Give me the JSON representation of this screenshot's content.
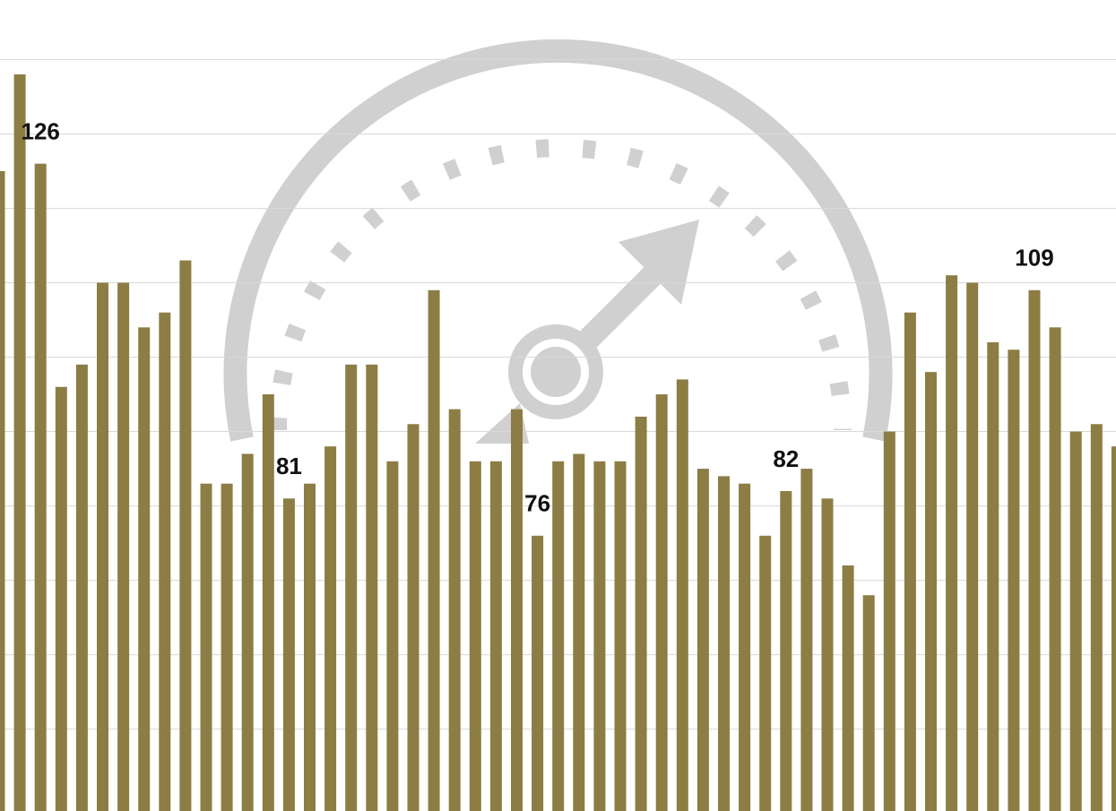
{
  "chart_data": {
    "type": "bar",
    "categories": [
      null,
      null,
      null,
      null,
      null,
      null,
      null,
      null,
      null,
      null,
      null,
      null,
      null,
      null,
      null,
      null,
      null,
      null,
      null,
      null,
      null,
      null,
      null,
      null,
      null,
      null,
      null,
      null,
      null,
      null,
      null,
      null,
      null,
      null,
      null,
      null,
      null,
      null,
      null,
      null,
      null,
      null,
      null,
      null,
      null,
      null,
      null,
      null,
      null,
      null,
      null,
      null,
      null,
      null,
      null
    ],
    "values": [
      125,
      138,
      126,
      96,
      99,
      110,
      110,
      104,
      106,
      113,
      83,
      83,
      87,
      95,
      81,
      83,
      88,
      99,
      99,
      86,
      91,
      109,
      93,
      86,
      86,
      93,
      76,
      86,
      87,
      86,
      86,
      92,
      95,
      97,
      85,
      84,
      83,
      76,
      82,
      85,
      81,
      72,
      68,
      90,
      106,
      98,
      111,
      110,
      102,
      101,
      109,
      104,
      90,
      91,
      88
    ],
    "value_labels": [
      null,
      null,
      "126",
      null,
      null,
      null,
      null,
      null,
      null,
      null,
      null,
      null,
      null,
      null,
      "81",
      null,
      null,
      null,
      null,
      null,
      null,
      null,
      null,
      null,
      null,
      null,
      "76",
      null,
      null,
      null,
      null,
      null,
      null,
      null,
      null,
      null,
      null,
      null,
      "82",
      null,
      null,
      null,
      null,
      null,
      null,
      null,
      null,
      null,
      null,
      null,
      "109",
      null,
      null,
      null,
      null
    ],
    "color": "#8c7d45",
    "ylim": [
      39,
      148
    ],
    "yticks": [
      50,
      60,
      70,
      80,
      90,
      100,
      110,
      120,
      130,
      140
    ],
    "grid": true
  }
}
